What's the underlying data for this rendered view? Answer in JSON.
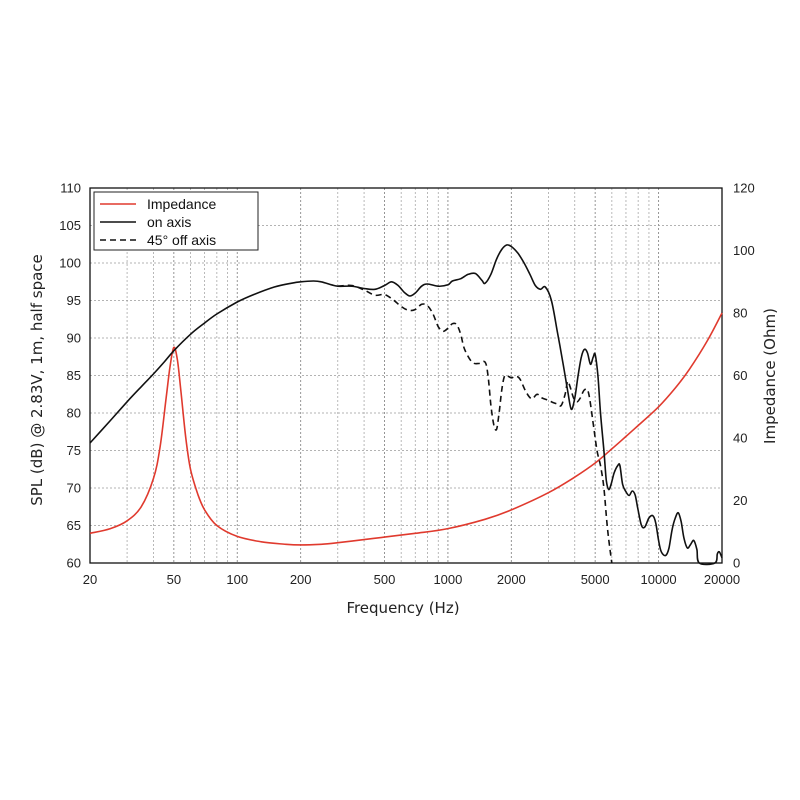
{
  "chart_data": {
    "type": "line",
    "xlabel": "Frequency (Hz)",
    "ylabel": "SPL (dB) @ 2.83V, 1m, half space",
    "y2label": "Impedance (Ohm)",
    "xscale": "log",
    "xlim": [
      20,
      20000
    ],
    "ylim": [
      60,
      110
    ],
    "y2lim": [
      0,
      120
    ],
    "grid": true,
    "legend_position": "top-left",
    "x_ticks": [
      20,
      50,
      100,
      200,
      500,
      1000,
      2000,
      5000,
      10000,
      20000
    ],
    "x_tick_labels": [
      "20",
      "50",
      "100",
      "200",
      "500",
      "1000",
      "2000",
      "5000",
      "10000",
      "20000"
    ],
    "y_ticks": [
      60,
      65,
      70,
      75,
      80,
      85,
      90,
      95,
      100,
      105,
      110
    ],
    "y_tick_labels": [
      "60",
      "65",
      "70",
      "75",
      "80",
      "85",
      "90",
      "95",
      "100",
      "105",
      "110"
    ],
    "y2_ticks": [
      0,
      20,
      40,
      60,
      80,
      100,
      120
    ],
    "y2_tick_labels": [
      "0",
      "20",
      "40",
      "60",
      "80",
      "100",
      "120"
    ],
    "series": [
      {
        "name": "Impedance",
        "axis": "right",
        "color": "#e03a2e",
        "dash": "solid",
        "points": [
          [
            20,
            9.5
          ],
          [
            25,
            11
          ],
          [
            30,
            13.5
          ],
          [
            35,
            18
          ],
          [
            40,
            27
          ],
          [
            43,
            37
          ],
          [
            46,
            53
          ],
          [
            48,
            63
          ],
          [
            50,
            69
          ],
          [
            52,
            65
          ],
          [
            54,
            55
          ],
          [
            57,
            40
          ],
          [
            60,
            30
          ],
          [
            65,
            22
          ],
          [
            70,
            17
          ],
          [
            80,
            12
          ],
          [
            100,
            8.5
          ],
          [
            130,
            6.8
          ],
          [
            170,
            6
          ],
          [
            200,
            5.8
          ],
          [
            250,
            6
          ],
          [
            300,
            6.5
          ],
          [
            400,
            7.5
          ],
          [
            500,
            8.3
          ],
          [
            700,
            9.5
          ],
          [
            1000,
            11
          ],
          [
            1500,
            14
          ],
          [
            2000,
            17
          ],
          [
            3000,
            22.5
          ],
          [
            4000,
            27.5
          ],
          [
            5000,
            32
          ],
          [
            6000,
            36.5
          ],
          [
            7000,
            40.5
          ],
          [
            8000,
            44
          ],
          [
            10000,
            50
          ],
          [
            12000,
            56
          ],
          [
            14000,
            62
          ],
          [
            17000,
            71
          ],
          [
            20000,
            80
          ]
        ]
      },
      {
        "name": "on axis",
        "axis": "left",
        "color": "#111111",
        "dash": "solid",
        "points": [
          [
            20,
            76
          ],
          [
            25,
            79
          ],
          [
            30,
            81.5
          ],
          [
            35,
            83.5
          ],
          [
            40,
            85.2
          ],
          [
            45,
            86.8
          ],
          [
            50,
            88.3
          ],
          [
            60,
            90.5
          ],
          [
            70,
            92
          ],
          [
            80,
            93.2
          ],
          [
            100,
            94.8
          ],
          [
            120,
            95.8
          ],
          [
            150,
            96.8
          ],
          [
            180,
            97.3
          ],
          [
            200,
            97.5
          ],
          [
            230,
            97.6
          ],
          [
            250,
            97.5
          ],
          [
            280,
            97.1
          ],
          [
            300,
            96.9
          ],
          [
            350,
            96.9
          ],
          [
            400,
            96.6
          ],
          [
            450,
            96.5
          ],
          [
            500,
            97
          ],
          [
            540,
            97.5
          ],
          [
            580,
            97
          ],
          [
            620,
            96.1
          ],
          [
            660,
            95.6
          ],
          [
            700,
            96
          ],
          [
            750,
            96.9
          ],
          [
            800,
            97.2
          ],
          [
            900,
            96.9
          ],
          [
            1000,
            97.1
          ],
          [
            1050,
            97.6
          ],
          [
            1150,
            97.9
          ],
          [
            1250,
            98.5
          ],
          [
            1350,
            98.6
          ],
          [
            1450,
            97.7
          ],
          [
            1500,
            97.3
          ],
          [
            1600,
            98.5
          ],
          [
            1700,
            100.5
          ],
          [
            1800,
            101.8
          ],
          [
            1900,
            102.4
          ],
          [
            2000,
            102.2
          ],
          [
            2150,
            101.3
          ],
          [
            2300,
            100
          ],
          [
            2450,
            98.5
          ],
          [
            2600,
            97
          ],
          [
            2750,
            96.5
          ],
          [
            2900,
            96.8
          ],
          [
            3100,
            95
          ],
          [
            3300,
            91
          ],
          [
            3500,
            87
          ],
          [
            3700,
            83
          ],
          [
            3850,
            80.5
          ],
          [
            4000,
            82
          ],
          [
            4150,
            85
          ],
          [
            4300,
            87.5
          ],
          [
            4450,
            88.5
          ],
          [
            4600,
            88
          ],
          [
            4750,
            86.5
          ],
          [
            4900,
            87.5
          ],
          [
            5000,
            87.8
          ],
          [
            5150,
            85
          ],
          [
            5300,
            80
          ],
          [
            5500,
            75
          ],
          [
            5650,
            71
          ],
          [
            5800,
            69.8
          ],
          [
            5950,
            70.5
          ],
          [
            6150,
            72
          ],
          [
            6400,
            73
          ],
          [
            6550,
            73
          ],
          [
            6750,
            70.5
          ],
          [
            7000,
            69.5
          ],
          [
            7250,
            69
          ],
          [
            7500,
            69.6
          ],
          [
            7750,
            69
          ],
          [
            8000,
            67
          ],
          [
            8300,
            65
          ],
          [
            8600,
            64.8
          ],
          [
            9000,
            66
          ],
          [
            9400,
            66.3
          ],
          [
            9700,
            65.3
          ],
          [
            10000,
            63
          ],
          [
            10300,
            61.5
          ],
          [
            10800,
            61
          ],
          [
            11200,
            62
          ],
          [
            11600,
            64.5
          ],
          [
            12000,
            66
          ],
          [
            12400,
            66.7
          ],
          [
            12800,
            65.5
          ],
          [
            13200,
            63.3
          ],
          [
            13700,
            62
          ],
          [
            14200,
            62.5
          ],
          [
            14700,
            63
          ],
          [
            15200,
            61.8
          ],
          [
            15600,
            60
          ],
          [
            18500,
            60
          ],
          [
            19000,
            61.2
          ],
          [
            19400,
            61.5
          ],
          [
            19800,
            61
          ],
          [
            20000,
            60.7
          ]
        ]
      },
      {
        "name": "45° off axis",
        "axis": "left",
        "color": "#111111",
        "dash": "dashed",
        "points": [
          [
            300,
            96.9
          ],
          [
            350,
            97
          ],
          [
            400,
            96.4
          ],
          [
            450,
            95.7
          ],
          [
            500,
            95.8
          ],
          [
            550,
            95.1
          ],
          [
            600,
            94.2
          ],
          [
            650,
            93.7
          ],
          [
            700,
            93.8
          ],
          [
            750,
            94.5
          ],
          [
            800,
            94.3
          ],
          [
            850,
            93.2
          ],
          [
            900,
            91.5
          ],
          [
            950,
            90.9
          ],
          [
            1000,
            91.3
          ],
          [
            1050,
            91.9
          ],
          [
            1100,
            91.8
          ],
          [
            1150,
            90.5
          ],
          [
            1200,
            88.5
          ],
          [
            1300,
            86.8
          ],
          [
            1400,
            86.6
          ],
          [
            1500,
            86.8
          ],
          [
            1550,
            85
          ],
          [
            1600,
            81
          ],
          [
            1650,
            78.5
          ],
          [
            1700,
            77.8
          ],
          [
            1750,
            80
          ],
          [
            1800,
            83
          ],
          [
            1850,
            84.8
          ],
          [
            1900,
            85
          ],
          [
            2000,
            84.7
          ],
          [
            2100,
            84.9
          ],
          [
            2200,
            84.5
          ],
          [
            2350,
            82.8
          ],
          [
            2500,
            81.9
          ],
          [
            2650,
            82.5
          ],
          [
            2800,
            82
          ],
          [
            3000,
            81.7
          ],
          [
            3150,
            81.4
          ],
          [
            3300,
            81.2
          ],
          [
            3450,
            81
          ],
          [
            3600,
            82.5
          ],
          [
            3700,
            84.2
          ],
          [
            3800,
            83.5
          ],
          [
            3950,
            82
          ],
          [
            4100,
            81.5
          ],
          [
            4250,
            82
          ],
          [
            4450,
            83.1
          ],
          [
            4650,
            82.7
          ],
          [
            4900,
            78.5
          ],
          [
            5100,
            75
          ],
          [
            5300,
            73
          ],
          [
            5500,
            70
          ],
          [
            5700,
            65
          ],
          [
            5900,
            61.5
          ],
          [
            6000,
            60
          ]
        ]
      }
    ]
  }
}
